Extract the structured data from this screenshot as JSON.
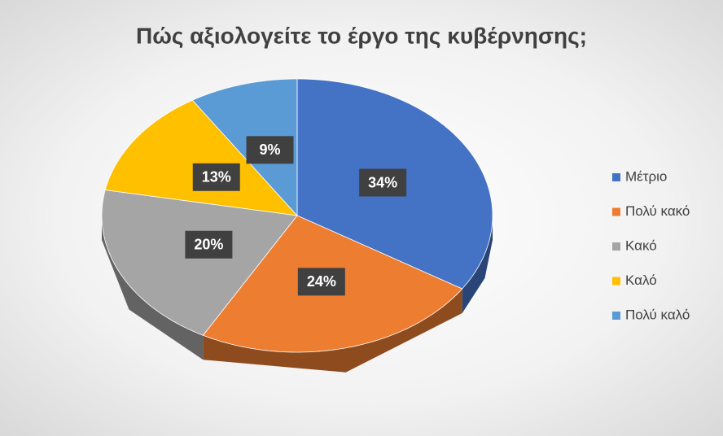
{
  "chart_data": {
    "type": "pie",
    "title": "Πώς αξιολογείτε το έργο της κυβέρνησης;",
    "categories": [
      "Μέτριο",
      "Πολύ κακό",
      "Κακό",
      "Καλό",
      "Πολύ καλό"
    ],
    "values": [
      34,
      24,
      20,
      13,
      9
    ],
    "value_labels": [
      "34%",
      "24%",
      "20%",
      "13%",
      "9%"
    ],
    "colors": [
      "#4472c4",
      "#ed7d31",
      "#a5a5a5",
      "#ffc000",
      "#5b9bd5"
    ],
    "legend": "right"
  }
}
